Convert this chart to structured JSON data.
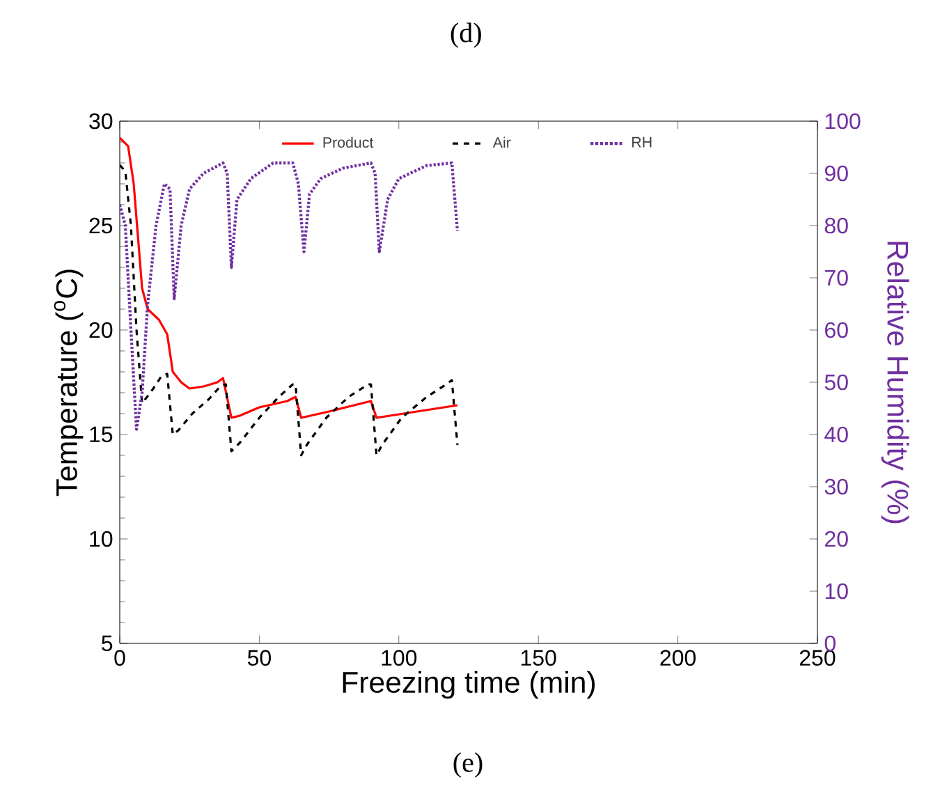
{
  "chart_data": {
    "type": "line",
    "title": "(d)",
    "xlabel": "Freezing time (min)",
    "ylabel": "Temperature ($^{o}$C)",
    "y2label": "Relative Humidity (%)",
    "annotations": [
      "(e)"
    ],
    "xlim": [
      0,
      250
    ],
    "xticks": [
      0,
      50,
      100,
      150,
      200,
      250
    ],
    "ylim": [
      5,
      30
    ],
    "yticks": [
      5,
      10,
      15,
      20,
      25,
      30
    ],
    "y2lim": [
      0,
      100
    ],
    "y2ticks": [
      0,
      10,
      20,
      30,
      40,
      50,
      60,
      70,
      80,
      90,
      100
    ],
    "legend": "top",
    "grid": false,
    "series": [
      {
        "name": "Product",
        "color": "#ff0000",
        "line_style": "solid",
        "axis": "y",
        "x": [
          0,
          3,
          5,
          8,
          10,
          14,
          17,
          19,
          22,
          25,
          30,
          35,
          37,
          40,
          43,
          50,
          60,
          63,
          65,
          75,
          90,
          92,
          121
        ],
        "values": [
          29.2,
          28.8,
          27,
          22,
          21,
          20.5,
          19.8,
          18,
          17.5,
          17.2,
          17.3,
          17.5,
          17.7,
          15.8,
          15.9,
          16.3,
          16.6,
          16.8,
          15.8,
          16.1,
          16.6,
          15.8,
          16.4
        ]
      },
      {
        "name": "Air",
        "color": "#000000",
        "line_style": "dashed",
        "axis": "y",
        "x": [
          0,
          2,
          4,
          6,
          8,
          11,
          15,
          17,
          19,
          21,
          26,
          32,
          36,
          38,
          40,
          43,
          50,
          57,
          62,
          63,
          65,
          67,
          74,
          82,
          89,
          90,
          92,
          94,
          101,
          110,
          117,
          119,
          121
        ],
        "values": [
          27.9,
          27.6,
          25,
          20,
          16.5,
          17,
          17.8,
          17.9,
          15,
          15.2,
          16,
          16.7,
          17.3,
          17.4,
          14.2,
          14.6,
          15.8,
          16.8,
          17.4,
          17.4,
          14,
          14.5,
          15.8,
          16.8,
          17.4,
          17.4,
          14,
          14.5,
          15.8,
          16.8,
          17.4,
          17.6,
          14.5
        ]
      },
      {
        "name": "RH",
        "color": "#7030a0",
        "line_style": "dotted",
        "axis": "y2",
        "x": [
          0,
          2,
          4,
          6,
          8,
          10,
          13,
          16,
          18,
          19.5,
          22,
          25,
          30,
          37,
          38.5,
          40,
          42,
          47,
          55,
          62,
          64,
          66,
          68,
          72,
          80,
          90,
          91.5,
          93,
          96,
          100,
          110,
          119,
          121
        ],
        "values": [
          84,
          80,
          60,
          41,
          48,
          65,
          80,
          88,
          87,
          66,
          80,
          87,
          90,
          92,
          90,
          72,
          85,
          89,
          92,
          92,
          88,
          75,
          86,
          89,
          91,
          92,
          90,
          75,
          85,
          89,
          91.5,
          92,
          79
        ]
      }
    ]
  }
}
